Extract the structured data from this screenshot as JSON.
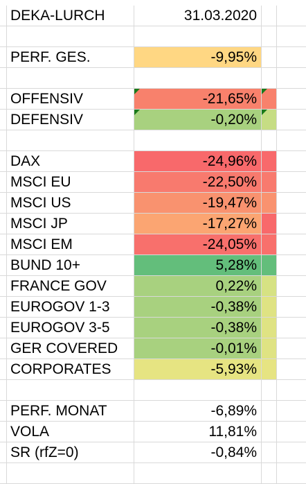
{
  "header": {
    "title": "DEKA-LURCH",
    "date": "31.03.2020"
  },
  "rows": [
    {
      "label": "DEKA-LURCH",
      "value": "31.03.2020",
      "bg": "",
      "side": ""
    },
    {
      "label": "",
      "value": "",
      "bg": "",
      "side": ""
    },
    {
      "label": "PERF. GES.",
      "value": "-9,95%",
      "bg": "#ffd783",
      "side": ""
    },
    {
      "label": "",
      "value": "",
      "bg": "",
      "side": ""
    },
    {
      "label": "OFFENSIV",
      "value": "-21,65%",
      "bg": "#f8816c",
      "side": "#f8816c",
      "comment": true
    },
    {
      "label": "DEFENSIV",
      "value": "-0,20%",
      "bg": "#a8d17f",
      "side": "#c6dd84",
      "comment": true
    },
    {
      "label": "",
      "value": "",
      "bg": "",
      "side": ""
    },
    {
      "label": "DAX",
      "value": "-24,96%",
      "bg": "#f8696b",
      "side": "#f8696b"
    },
    {
      "label": "MSCI EU",
      "value": "-22,50%",
      "bg": "#f87a6e",
      "side": "#f87a6e"
    },
    {
      "label": "MSCI US",
      "value": "-19,47%",
      "bg": "#f9926f",
      "side": "#f9926f"
    },
    {
      "label": "MSCI JP",
      "value": "-17,27%",
      "bg": "#fba572",
      "side": "#f8696b"
    },
    {
      "label": "MSCI EM",
      "value": "-24,05%",
      "bg": "#f8706c",
      "side": "#f8706c"
    },
    {
      "label": "BUND 10+",
      "value": "5,28%",
      "bg": "#63be7b",
      "side": "#63be7b"
    },
    {
      "label": "FRANCE GOV",
      "value": "0,22%",
      "bg": "#a8d17f",
      "side": "#d6e283"
    },
    {
      "label": "EUROGOV 1-3",
      "value": "-0,38%",
      "bg": "#a8d17f",
      "side": "#dfe383"
    },
    {
      "label": "EUROGOV 3-5",
      "value": "-0,38%",
      "bg": "#a8d17f",
      "side": "#dfe383"
    },
    {
      "label": "GER COVERED",
      "value": "-0,01%",
      "bg": "#a8d17f",
      "side": "#dfe383"
    },
    {
      "label": "CORPORATES",
      "value": "-5,93%",
      "bg": "#e6e482",
      "side": "#e6e482"
    },
    {
      "label": "",
      "value": "",
      "bg": "",
      "side": ""
    },
    {
      "label": "PERF. MONAT",
      "value": "-6,89%",
      "bg": "",
      "side": ""
    },
    {
      "label": "VOLA",
      "value": "11,81%",
      "bg": "",
      "side": ""
    },
    {
      "label": "SR (rfZ=0)",
      "value": "-0,84%",
      "bg": "",
      "side": ""
    }
  ]
}
